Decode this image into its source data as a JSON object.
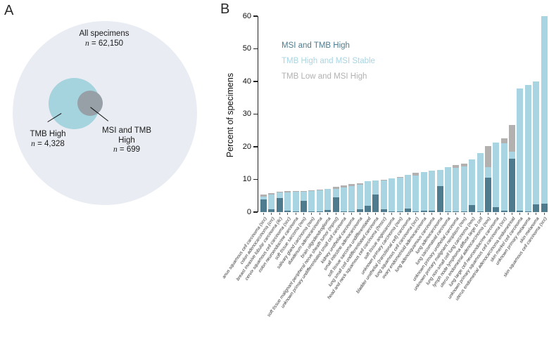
{
  "panel_a": {
    "label": "A",
    "venn": {
      "all": {
        "title": "All specimens",
        "n_italic": "n",
        "n_rest": " = 62,150"
      },
      "tmb": {
        "title": "TMB High",
        "n_italic": "n",
        "n_rest": " = 4,328"
      },
      "msi_tmb": {
        "title_line1": "MSI and TMB",
        "title_line2": "High",
        "n_italic": "n",
        "n_rest": " = 699"
      },
      "colors": {
        "all": "#e9edf3",
        "tmb_high": "#a5d3de",
        "msi_and_tmb_high": "#96a0a6"
      }
    }
  },
  "panel_b": {
    "label": "B",
    "ylabel": "Percent of specimens"
  },
  "chart_data": {
    "type": "bar",
    "stacked": true,
    "title": "",
    "xlabel": "",
    "ylabel": "Percent of specimens",
    "ylim": [
      0,
      60
    ],
    "yticks": [
      0,
      10,
      20,
      30,
      40,
      50,
      60
    ],
    "grid": false,
    "legend_position": "upper-left-inside",
    "categories": [
      "anus squamous cell carcinoma (scc)",
      "colon adenocarcinoma (crc)",
      "breast invasive lobular carcinoma (ilc)",
      "cervix squamous cell carcinoma (scc)",
      "colon neuroendocrine carcinoma",
      "soft tissue sarcoma (nos)",
      "salivary gland carcinoma (nos)",
      "duodenum adenocarcinoma",
      "brain oligodendroglioma",
      "soft tissue malignant peripheral nerve sheath tumor (mpnst)",
      "unknown primary undifferentiated small cell carcinoma",
      "kidney urothelial carcinoma",
      "small intestine adenocarcinoma",
      "soft tissue sarcoma undifferentiated",
      "lung small cell undifferentiated carcinoma",
      "head and neck squamous cell carcinoma (hnscc)",
      "soft tissue angiosarcoma",
      "unknown primary carcinoma (nos)",
      "bladder urothelial (transitional cell) carcinoma",
      "lung squamous cell carcinoma (scc)",
      "ovary endometrioid adenocarcinoma",
      "lung adenosquamous carcinoma",
      "lung adenocarcinoma",
      "lung sarcomatoid carcinoma",
      "unknown primary urothelial carcinoma",
      "unknown primary malignant neoplasm (nos)",
      "lung non-small cell lung carcinoma (nos)",
      "lymph node lymphoma diffuse large b cell",
      "uterus endometrial adenocarcinoma (nos)",
      "lung large cell neuroendocrine carcinoma",
      "unknown primary squamous cell carcinoma (scc)",
      "uterus endometrial adenocarcinoma endometrioid",
      "skin merkel cell carcinoma",
      "unknown primary melanoma",
      "skin melanoma",
      "skin squamous cell carcinoma (scc)"
    ],
    "series": [
      {
        "name": "MSI and TMB High",
        "color": "#4e7c8e",
        "values": [
          3.9,
          0.9,
          4.4,
          0.4,
          0.2,
          3.4,
          0.3,
          0.2,
          0.6,
          4.6,
          0.2,
          0.3,
          0.8,
          1.9,
          5.3,
          0.9,
          0.3,
          0.3,
          1.0,
          0.3,
          0.5,
          0.4,
          8.0,
          0.3,
          0.2,
          0.3,
          2.1,
          0.2,
          10.5,
          1.5,
          0.4,
          16.3,
          0.4,
          0.3,
          2.3,
          2.6
        ]
      },
      {
        "name": "TMB High and MSI Stable",
        "color": "#a9d5e3",
        "values": [
          0.9,
          4.4,
          1.6,
          5.7,
          6.2,
          3.0,
          6.2,
          6.4,
          6.5,
          2.4,
          7.4,
          7.7,
          7.6,
          7.5,
          4.4,
          8.8,
          10.1,
          10.2,
          10.3,
          10.9,
          11.7,
          12.3,
          4.8,
          13.4,
          13.3,
          13.7,
          14.0,
          17.9,
          3.2,
          19.8,
          20.6,
          2.2,
          37.4,
          38.6,
          37.8,
          57.4
        ]
      },
      {
        "name": "TMB Low and MSI High",
        "color": "#b3b1b0",
        "values": [
          0.5,
          0.5,
          0.2,
          0.3,
          0.1,
          0.1,
          0.2,
          0.3,
          0.0,
          0.7,
          0.6,
          0.5,
          0.5,
          0.0,
          0.0,
          0.3,
          0.0,
          0.2,
          0.0,
          0.9,
          0.0,
          0.0,
          0.0,
          0.0,
          1.0,
          0.8,
          0.0,
          0.0,
          6.5,
          0.0,
          1.5,
          8.2,
          0.0,
          0.0,
          0.0,
          0.0
        ]
      }
    ]
  }
}
